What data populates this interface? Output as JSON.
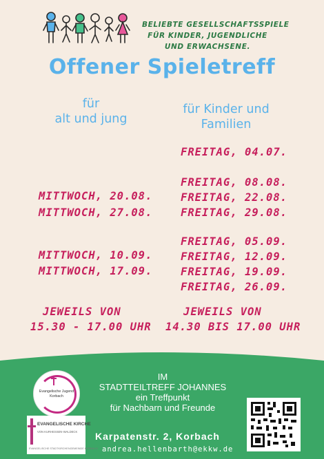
{
  "tagline": [
    "Beliebte Gesellschaftsspiele",
    "für Kinder, Jugendliche",
    "und Erwachsene."
  ],
  "title": "Offener Spieletreff",
  "left_column": {
    "heading": [
      "für",
      "alt und jung"
    ],
    "dates": [
      "MITTWOCH, 20.08.",
      "MITTWOCH, 27.08.",
      "MITTWOCH, 10.09.",
      "MITTWOCH, 17.09."
    ],
    "time": [
      "JEWEILS VON",
      "15.30 - 17.00 UHR"
    ]
  },
  "right_column": {
    "heading": [
      "für Kinder und",
      "Familien"
    ],
    "dates": [
      "FREITAG, 04.07.",
      "FREITAG, 08.08.",
      "FREITAG, 22.08.",
      "FREITAG, 29.08.",
      "FREITAG, 05.09.",
      "FREITAG, 12.09.",
      "FREITAG, 19.09.",
      "FREITAG, 26.09."
    ],
    "time": [
      "JEWEILS VON",
      "14.30 BIS 17.00 UHR"
    ]
  },
  "footer": {
    "venue": [
      "IM",
      "STADTTEILTREFF JOHANNES",
      "ein Treffpunkt",
      "für Nachbarn und Freunde"
    ],
    "address": "Karpatenstr. 2, Korbach",
    "email": "andrea.hellenbarth@ekkw.de"
  },
  "logos": {
    "youth": [
      "Evangelische Jugend",
      "Korbach"
    ],
    "church_name": "EVANGELISCHE KIRCHE",
    "church_sub": "VON KURHESSEN-WALDECK",
    "church_small": "EVANGELISCHE STADTKIRCHENGEMEINDE KORBACH"
  },
  "colors": {
    "background": "#f6ece2",
    "title_blue": "#5ab2ea",
    "date_red": "#c61f5c",
    "footer_green": "#3ba766",
    "tagline_green": "#2d7a45"
  },
  "icons": [
    "stick-figure-family-icon",
    "qr-code-icon",
    "cross-icon"
  ]
}
